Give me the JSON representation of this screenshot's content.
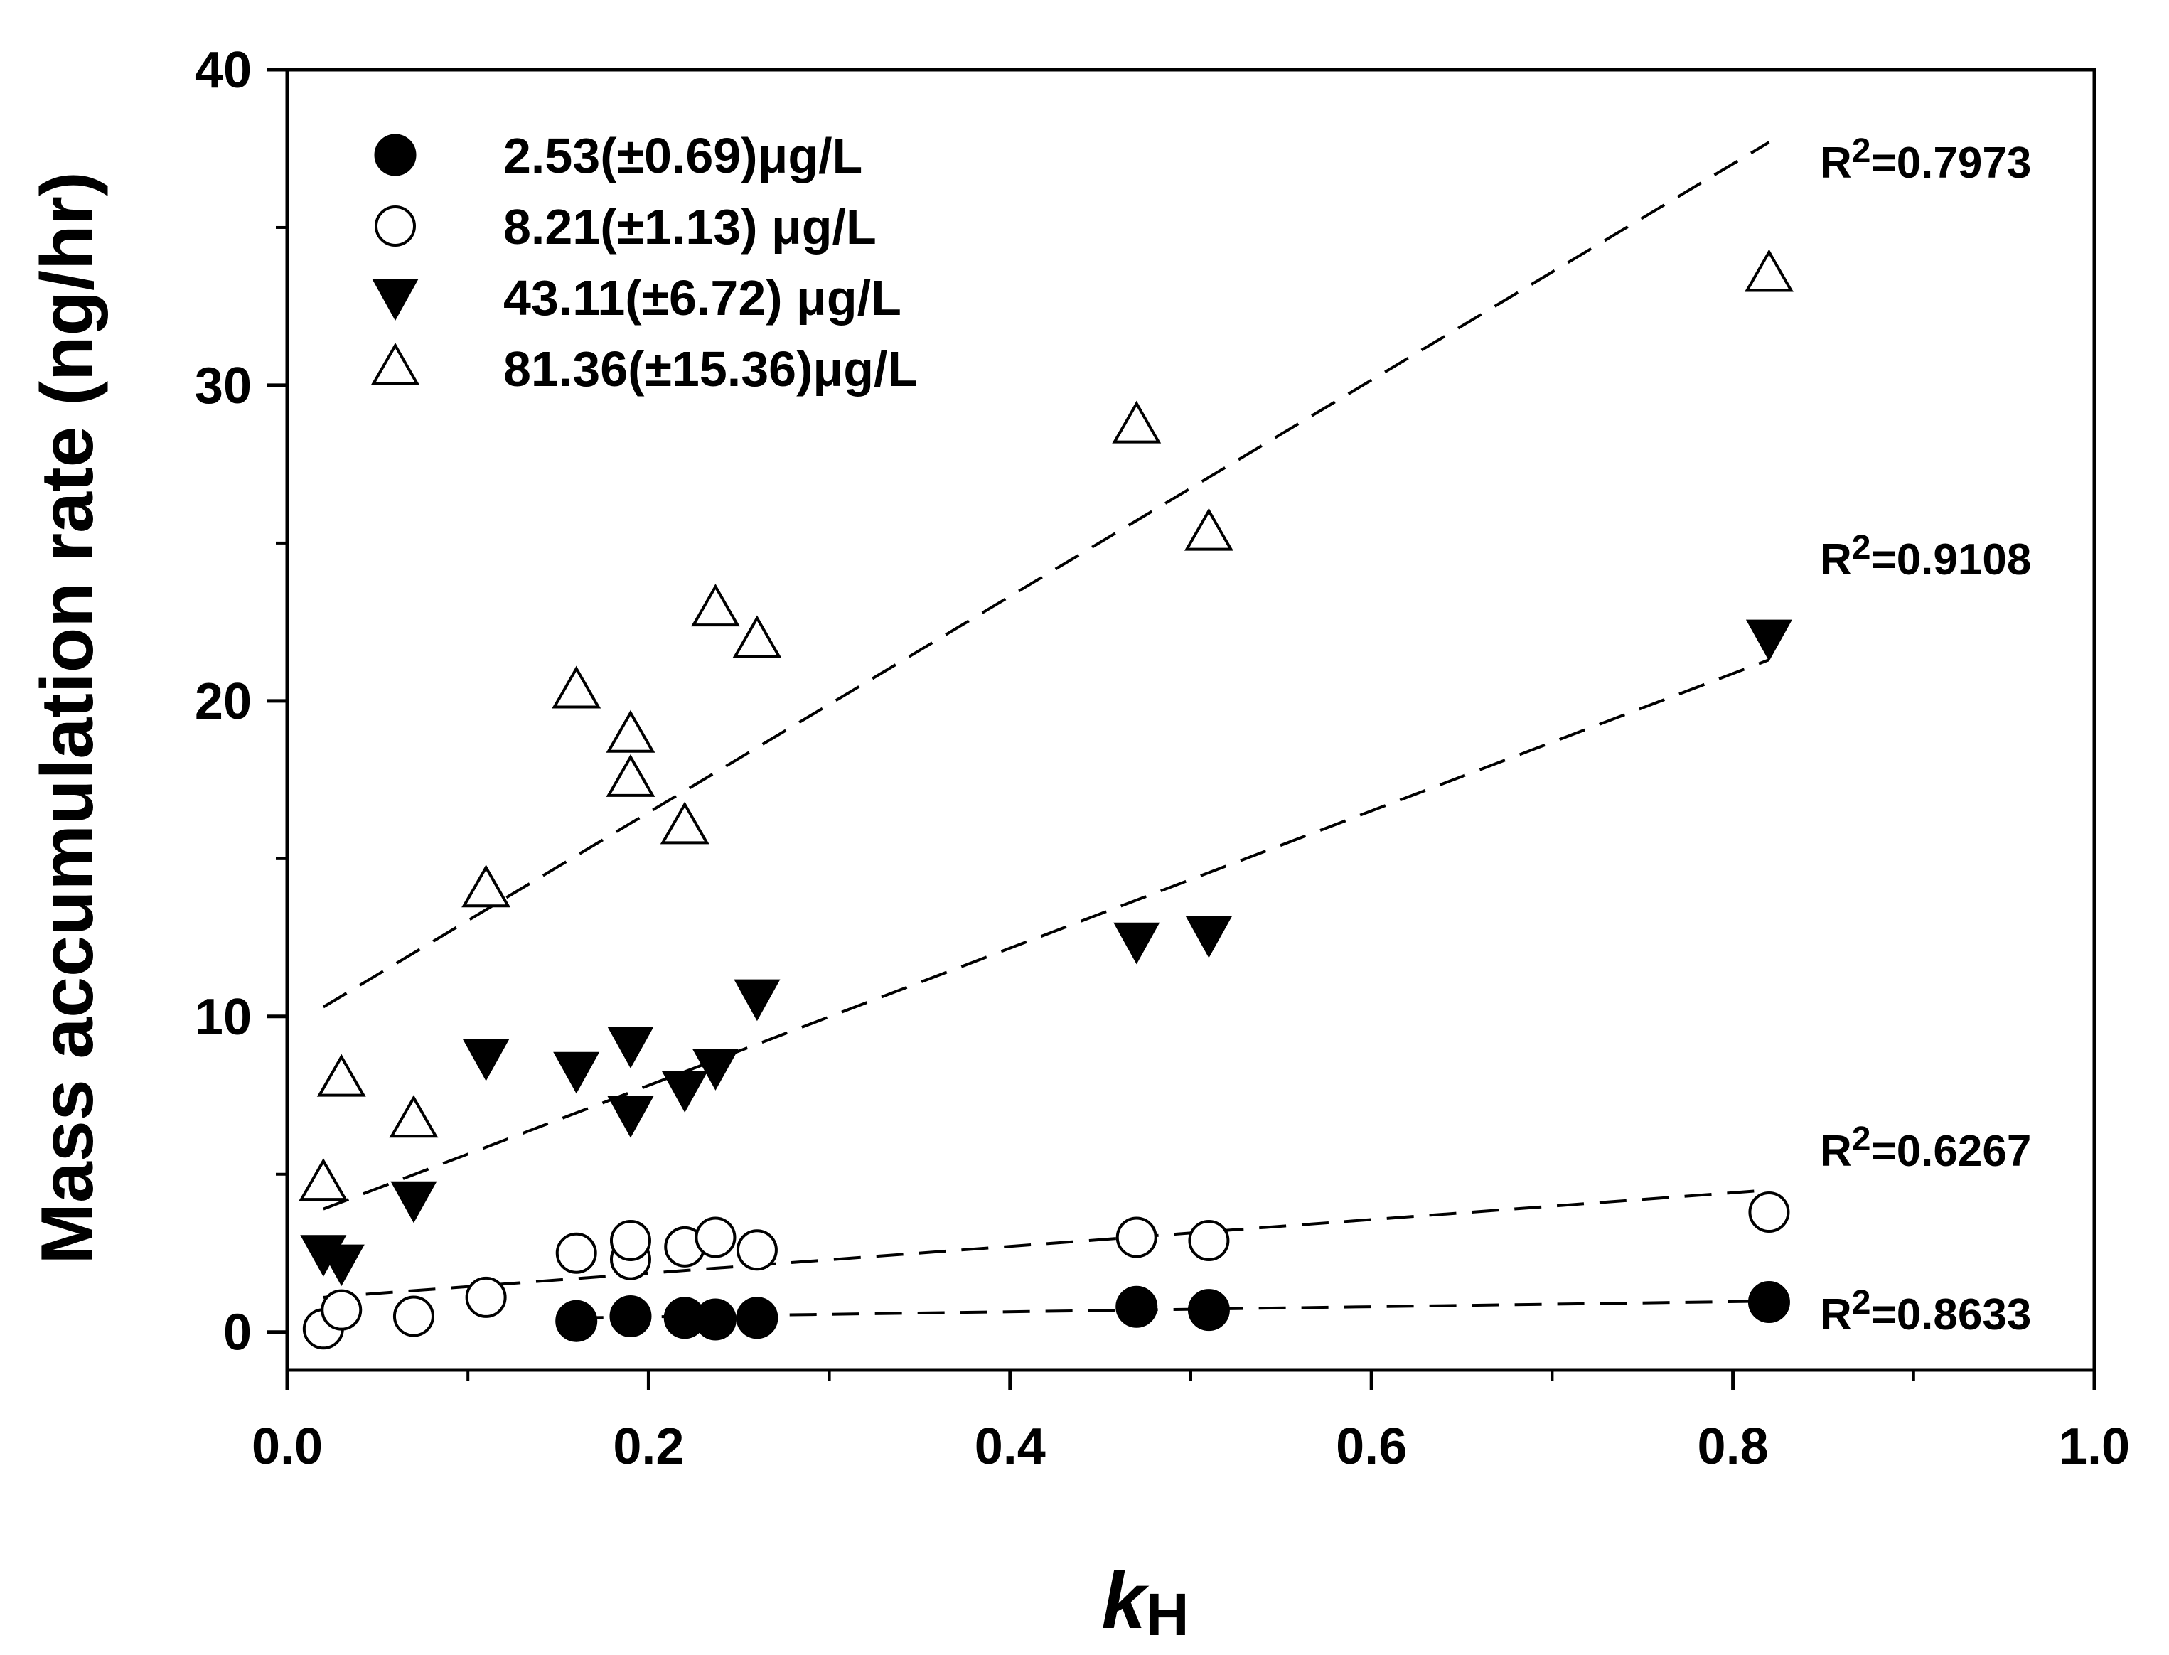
{
  "chart_data": {
    "type": "scatter",
    "title": "",
    "xlabel": "k",
    "xlabel_subscript": "H",
    "ylabel": "Mass accumulation rate (ng/hr)",
    "xlim": [
      0.0,
      1.0
    ],
    "ylim": [
      -1.2,
      40
    ],
    "x_ticks": [
      0.0,
      0.2,
      0.4,
      0.6,
      0.8,
      1.0
    ],
    "x_tick_labels": [
      "0.0",
      "0.2",
      "0.4",
      "0.6",
      "0.8",
      "1.0"
    ],
    "y_ticks": [
      0,
      10,
      20,
      30,
      40
    ],
    "y_tick_labels": [
      "0",
      "10",
      "20",
      "30",
      "40"
    ],
    "grid": false,
    "legend_position": "top-left",
    "series": [
      {
        "name": "2.53(±0.69)μg/L",
        "marker": "circle-filled",
        "points": [
          {
            "x": 0.16,
            "y": 0.35
          },
          {
            "x": 0.19,
            "y": 0.5
          },
          {
            "x": 0.22,
            "y": 0.45
          },
          {
            "x": 0.237,
            "y": 0.4
          },
          {
            "x": 0.26,
            "y": 0.45
          },
          {
            "x": 0.47,
            "y": 0.8
          },
          {
            "x": 0.51,
            "y": 0.7
          },
          {
            "x": 0.82,
            "y": 0.95
          }
        ],
        "trend": {
          "x": [
            0.16,
            0.82
          ],
          "y": [
            0.45,
            0.98
          ],
          "style": "dashed"
        },
        "r2_label": "R",
        "r2_value": "=0.8633"
      },
      {
        "name": "8.21(±1.13) μg/L",
        "marker": "circle-open",
        "points": [
          {
            "x": 0.02,
            "y": 0.1
          },
          {
            "x": 0.03,
            "y": 0.7
          },
          {
            "x": 0.07,
            "y": 0.5
          },
          {
            "x": 0.11,
            "y": 1.1
          },
          {
            "x": 0.16,
            "y": 2.5
          },
          {
            "x": 0.19,
            "y": 2.3
          },
          {
            "x": 0.19,
            "y": 2.9
          },
          {
            "x": 0.22,
            "y": 2.7
          },
          {
            "x": 0.237,
            "y": 3.0
          },
          {
            "x": 0.26,
            "y": 2.6
          },
          {
            "x": 0.47,
            "y": 3.0
          },
          {
            "x": 0.51,
            "y": 2.9
          },
          {
            "x": 0.82,
            "y": 3.8
          }
        ],
        "trend": {
          "x": [
            0.02,
            0.82
          ],
          "y": [
            1.1,
            4.5
          ],
          "style": "dashed"
        },
        "r2_label": "R",
        "r2_value": "=0.6267"
      },
      {
        "name": "43.11(±6.72) μg/L",
        "marker": "triangle-down-filled",
        "points": [
          {
            "x": 0.02,
            "y": 2.5
          },
          {
            "x": 0.03,
            "y": 2.2
          },
          {
            "x": 0.07,
            "y": 4.2
          },
          {
            "x": 0.11,
            "y": 8.7
          },
          {
            "x": 0.16,
            "y": 8.3
          },
          {
            "x": 0.19,
            "y": 9.1
          },
          {
            "x": 0.19,
            "y": 6.9
          },
          {
            "x": 0.22,
            "y": 7.7
          },
          {
            "x": 0.237,
            "y": 8.4
          },
          {
            "x": 0.26,
            "y": 10.6
          },
          {
            "x": 0.47,
            "y": 12.4
          },
          {
            "x": 0.51,
            "y": 12.6
          },
          {
            "x": 0.82,
            "y": 22.0
          }
        ],
        "trend": {
          "x": [
            0.02,
            0.82
          ],
          "y": [
            3.9,
            21.3
          ],
          "style": "dashed"
        },
        "r2_label": "R",
        "r2_value": "=0.9108"
      },
      {
        "name": "81.36(±15.36)μg/L",
        "marker": "triangle-up-open",
        "points": [
          {
            "x": 0.02,
            "y": 4.7
          },
          {
            "x": 0.03,
            "y": 8.0
          },
          {
            "x": 0.07,
            "y": 6.7
          },
          {
            "x": 0.11,
            "y": 14.0
          },
          {
            "x": 0.16,
            "y": 20.3
          },
          {
            "x": 0.19,
            "y": 18.9
          },
          {
            "x": 0.19,
            "y": 17.5
          },
          {
            "x": 0.22,
            "y": 16.0
          },
          {
            "x": 0.237,
            "y": 22.9
          },
          {
            "x": 0.26,
            "y": 21.9
          },
          {
            "x": 0.47,
            "y": 28.7
          },
          {
            "x": 0.51,
            "y": 25.3
          },
          {
            "x": 0.82,
            "y": 33.5
          }
        ],
        "trend": {
          "x": [
            0.02,
            0.82
          ],
          "y": [
            10.3,
            37.7
          ],
          "style": "dashed"
        },
        "r2_label": "R",
        "r2_value": "=0.7973"
      }
    ],
    "r2_superscript": "2"
  }
}
